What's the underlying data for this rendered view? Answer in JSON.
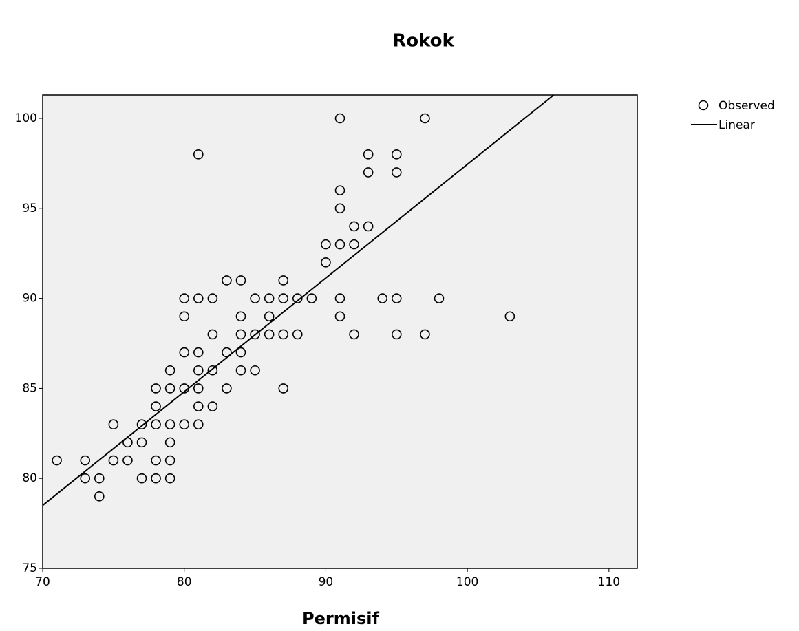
{
  "chart_data": {
    "type": "scatter",
    "title": "Rokok",
    "x_label": "Permisif",
    "xlim": [
      70,
      112
    ],
    "xticks": [
      70,
      80,
      90,
      100,
      110
    ],
    "ylim": [
      75,
      101.3
    ],
    "yticks": [
      75,
      80,
      85,
      90,
      95,
      100
    ],
    "legend": "right",
    "series": [
      {
        "name": "Observed",
        "color": "#000000",
        "x": [
          71,
          73,
          73,
          74,
          74,
          75,
          75,
          76,
          76,
          77,
          77,
          77,
          78,
          78,
          78,
          78,
          78,
          79,
          79,
          79,
          79,
          79,
          79,
          80,
          80,
          80,
          80,
          80,
          81,
          81,
          81,
          81,
          81,
          81,
          81,
          82,
          82,
          82,
          82,
          83,
          83,
          83,
          84,
          84,
          84,
          84,
          84,
          85,
          85,
          85,
          86,
          86,
          86,
          87,
          87,
          87,
          87,
          88,
          88,
          89,
          90,
          90,
          91,
          91,
          91,
          91,
          91,
          91,
          92,
          92,
          92,
          93,
          93,
          93,
          94,
          95,
          95,
          95,
          95,
          97,
          97,
          98,
          103
        ],
        "values": [
          81,
          81,
          80,
          80,
          79,
          83,
          81,
          82,
          81,
          83,
          82,
          80,
          85,
          84,
          83,
          81,
          80,
          86,
          85,
          83,
          82,
          81,
          80,
          90,
          89,
          87,
          85,
          83,
          98,
          90,
          87,
          86,
          85,
          84,
          83,
          90,
          88,
          86,
          84,
          91,
          87,
          85,
          91,
          89,
          88,
          87,
          86,
          90,
          88,
          86,
          90,
          89,
          88,
          91,
          90,
          88,
          85,
          90,
          88,
          90,
          93,
          92,
          100,
          96,
          95,
          93,
          90,
          89,
          94,
          93,
          88,
          98,
          97,
          94,
          90,
          98,
          97,
          90,
          88,
          100,
          88,
          90,
          89
        ]
      },
      {
        "name": "Linear",
        "color": "#000000",
        "x": [
          70,
          106.1
        ],
        "values": [
          78.5,
          101.3
        ]
      }
    ]
  }
}
